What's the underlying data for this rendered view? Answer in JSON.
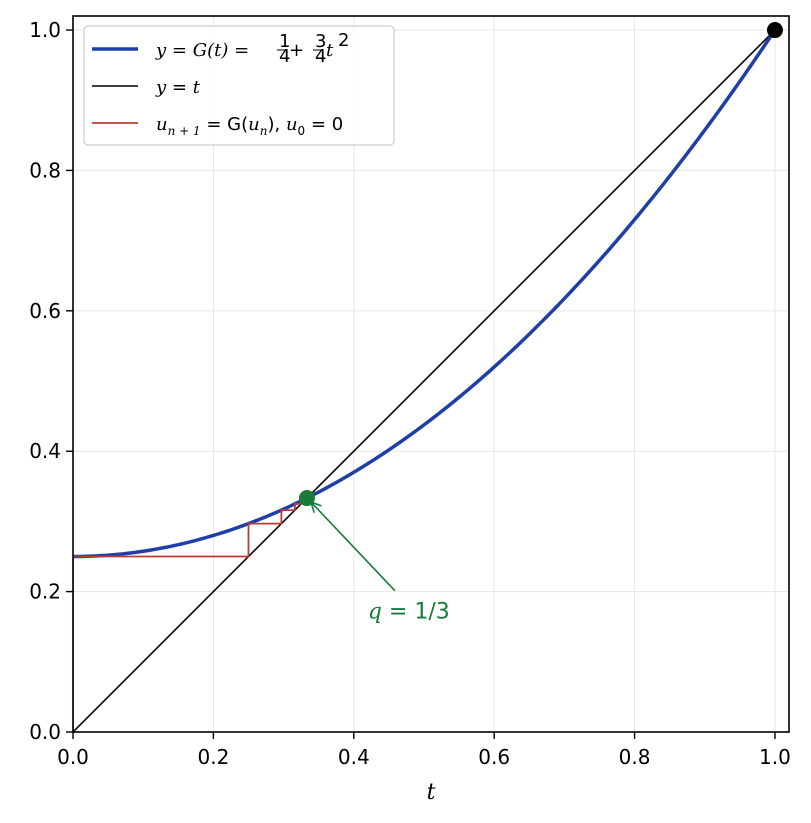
{
  "chart_data": {
    "type": "line",
    "xlabel": "t",
    "ylabel": "",
    "xlim": [
      0,
      1.02
    ],
    "ylim": [
      0,
      1.02
    ],
    "grid": true,
    "legend_position": "top-left",
    "x_ticks": [
      "0.0",
      "0.2",
      "0.4",
      "0.6",
      "0.8",
      "1.0"
    ],
    "y_ticks": [
      "0.0",
      "0.2",
      "0.4",
      "0.6",
      "0.8",
      "1.0"
    ],
    "colors": {
      "curve": "#1f3fa8",
      "identity": "#000000",
      "cobweb": "#b83b35",
      "fixed_point": "#1a7a3a",
      "end_point": "#000000"
    },
    "series": [
      {
        "name": "y = G(t) = 1/4 + 3/4 t^2",
        "legend_parts": {
          "lhs": "y = G(t) = ",
          "n1": "1",
          "d1": "4",
          "plus": " + ",
          "n2": "3",
          "d2": "4",
          "t": "t",
          "exp": "2"
        },
        "x": [
          0,
          0.1,
          0.2,
          0.3,
          0.4,
          0.5,
          0.6,
          0.7,
          0.8,
          0.9,
          1.0
        ],
        "y": [
          0.25,
          0.2575,
          0.28,
          0.3175,
          0.37,
          0.4375,
          0.52,
          0.6175,
          0.73,
          0.8575,
          1.0
        ]
      },
      {
        "name": "y = t",
        "legend_parts": {
          "y": "y",
          "eq": " = ",
          "t": "t"
        },
        "x": [
          0,
          1
        ],
        "y": [
          0,
          1
        ]
      },
      {
        "name": "u_{n+1} = G(u_n), u_0 = 0",
        "legend_parts": {
          "u1": "u",
          "sub1": "n + 1",
          "eq1": " = G(",
          "u2": "u",
          "sub2": "n",
          "close": "), ",
          "u3": "u",
          "sub3": "0",
          "eq2": " = 0"
        },
        "x": [
          0,
          0,
          0.25,
          0.25,
          0.296875,
          0.296875,
          0.316101,
          0.316101,
          0.324942,
          0.324942,
          0.329193
        ],
        "y": [
          0,
          0.25,
          0.25,
          0.296875,
          0.296875,
          0.316101,
          0.316101,
          0.324942,
          0.324942,
          0.329193,
          0.329193
        ]
      }
    ],
    "points": [
      {
        "name": "fixed point",
        "x": 0.3333,
        "y": 0.3333
      },
      {
        "name": "end point",
        "x": 1.0,
        "y": 1.0
      }
    ],
    "annotations": [
      {
        "text": "q = 1/3",
        "parts": {
          "q": "q",
          "rest": " = 1/3"
        },
        "x": 0.3333,
        "y": 0.3333,
        "text_x": 0.42,
        "text_y": 0.18
      }
    ]
  }
}
